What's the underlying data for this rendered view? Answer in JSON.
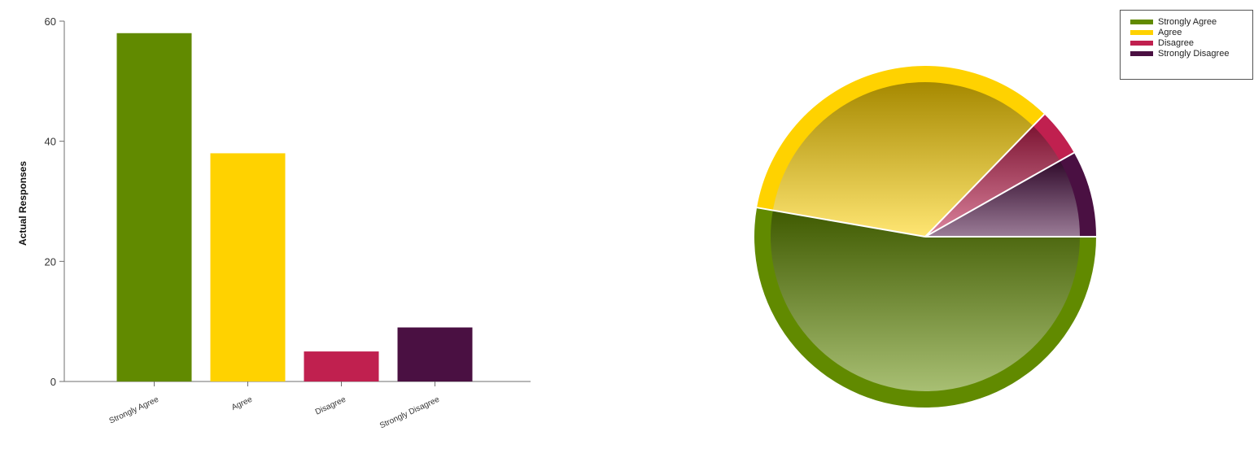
{
  "chart_data": [
    {
      "type": "bar",
      "categories": [
        "Strongly Agree",
        "Agree",
        "Disagree",
        "Strongly Disagree"
      ],
      "values": [
        58,
        38,
        5,
        9
      ],
      "colors": [
        "#618a00",
        "#ffd200",
        "#c0204f",
        "#4a1042"
      ],
      "xlabel": "",
      "ylabel": "Actual Responses",
      "ylim": [
        0,
        60
      ],
      "yticks": [
        0,
        20,
        40,
        60
      ],
      "grid": false
    },
    {
      "type": "pie",
      "categories": [
        "Strongly Agree",
        "Agree",
        "Disagree",
        "Strongly Disagree"
      ],
      "values": [
        58,
        38,
        5,
        9
      ],
      "colors": [
        "#618a00",
        "#ffd200",
        "#c0204f",
        "#4a1042"
      ],
      "legend": {
        "placement": "top-right",
        "items": [
          "Strongly Agree",
          "Agree",
          "Disagree",
          "Strongly Disagree"
        ]
      }
    }
  ]
}
